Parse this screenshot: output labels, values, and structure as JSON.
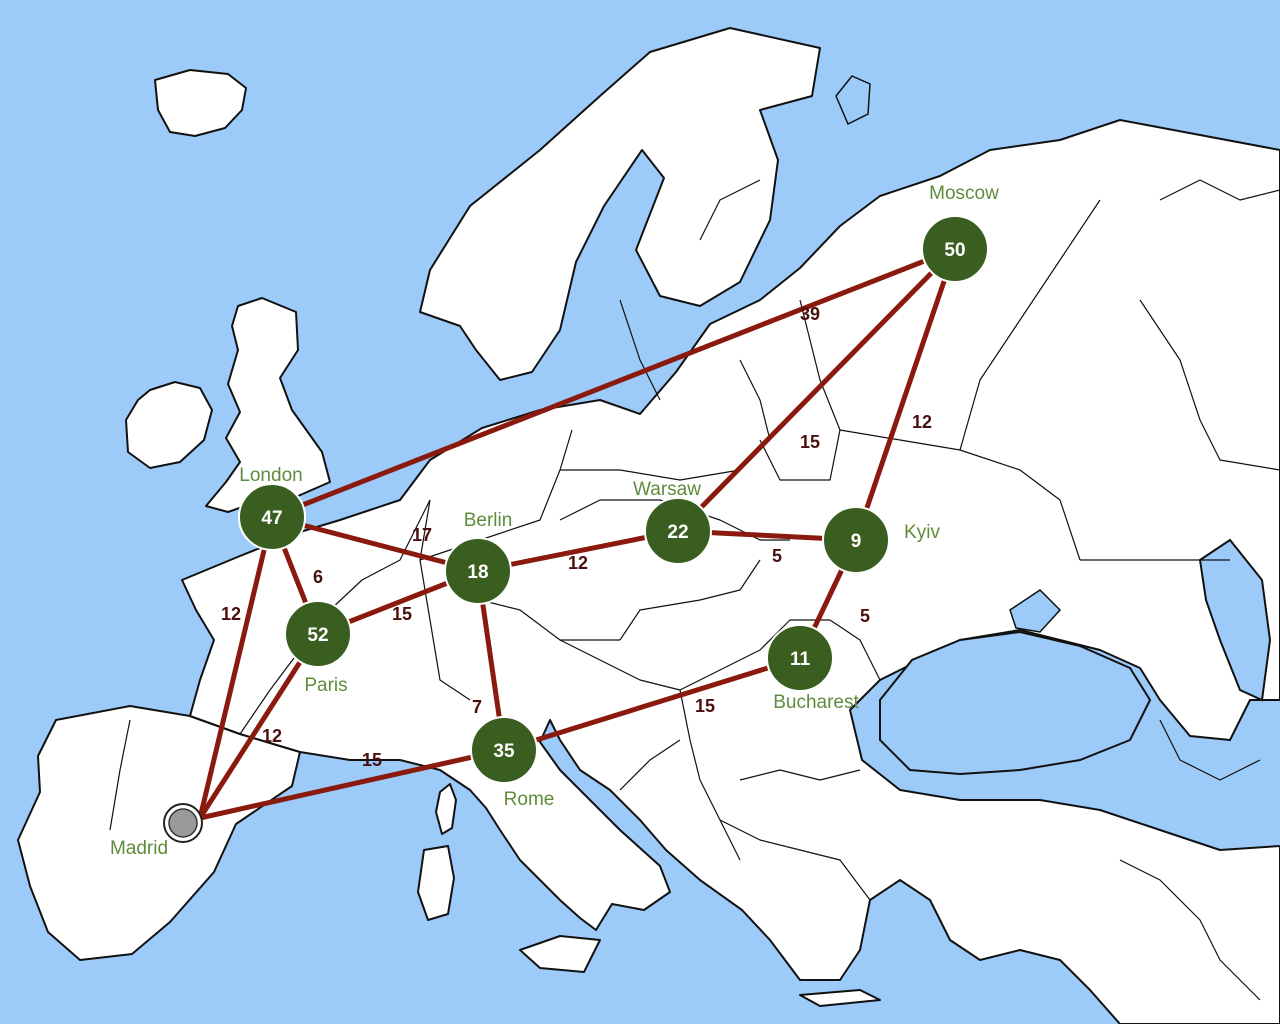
{
  "colors": {
    "sea": "#9ccbfa",
    "land": "#ffffff",
    "route": "#8b1a0e",
    "route_label": "#4a0f0f",
    "city_node": "#3a5e1f",
    "city_name": "#5f8c3c",
    "neutral_node": "#9a9a9a"
  },
  "cities": {
    "london": {
      "name": "London",
      "troops": "47"
    },
    "berlin": {
      "name": "Berlin",
      "troops": "18"
    },
    "warsaw": {
      "name": "Warsaw",
      "troops": "22"
    },
    "kyiv": {
      "name": "Kyiv",
      "troops": "9"
    },
    "moscow": {
      "name": "Moscow",
      "troops": "50"
    },
    "paris": {
      "name": "Paris",
      "troops": "52"
    },
    "bucharest": {
      "name": "Bucharest",
      "troops": "11"
    },
    "rome": {
      "name": "Rome",
      "troops": "35"
    },
    "madrid": {
      "name": "Madrid",
      "icon": "neutral-city-marker-icon"
    }
  },
  "routes": [
    {
      "from": "London",
      "to": "Moscow",
      "distance": "39"
    },
    {
      "from": "Moscow",
      "to": "Warsaw",
      "distance": "15"
    },
    {
      "from": "Moscow",
      "to": "Kyiv",
      "distance": "12"
    },
    {
      "from": "London",
      "to": "Berlin",
      "distance": "17"
    },
    {
      "from": "Berlin",
      "to": "Warsaw",
      "distance": "12"
    },
    {
      "from": "Warsaw",
      "to": "Kyiv",
      "distance": "5"
    },
    {
      "from": "Kyiv",
      "to": "Bucharest",
      "distance": "5"
    },
    {
      "from": "London",
      "to": "Paris",
      "distance": "6"
    },
    {
      "from": "Berlin",
      "to": "Paris",
      "distance": "15"
    },
    {
      "from": "London",
      "to": "Madrid",
      "distance": "12"
    },
    {
      "from": "Paris",
      "to": "Madrid",
      "distance": "12"
    },
    {
      "from": "Berlin",
      "to": "Rome",
      "distance": "7"
    },
    {
      "from": "Madrid",
      "to": "Rome",
      "distance": "15"
    },
    {
      "from": "Rome",
      "to": "Bucharest",
      "distance": "15"
    }
  ]
}
